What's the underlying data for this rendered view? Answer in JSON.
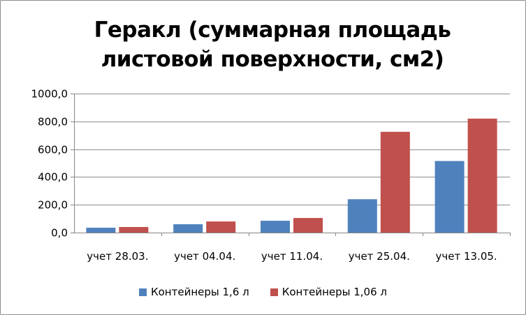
{
  "chart_data": {
    "type": "bar",
    "title_line1": "Геракл (суммарная площадь",
    "title_line2": "листовой поверхности, см2)",
    "categories": [
      "учет 28.03.",
      "учет 04.04.",
      "учет 11.04.",
      "учет 25.04.",
      "учет 13.05."
    ],
    "series": [
      {
        "name": "Контейнеры 1,6 л",
        "values": [
          35,
          60,
          85,
          240,
          515
        ],
        "color": "#4f81bd"
      },
      {
        "name": "Контейнеры 1,06 л",
        "values": [
          40,
          80,
          105,
          725,
          820
        ],
        "color": "#c0504d"
      }
    ],
    "ylim": [
      0,
      1000
    ],
    "yticks": [
      "0,0",
      "200,0",
      "400,0",
      "600,0",
      "800,0",
      "1000,0"
    ],
    "grid": true,
    "legend_position": "bottom"
  }
}
